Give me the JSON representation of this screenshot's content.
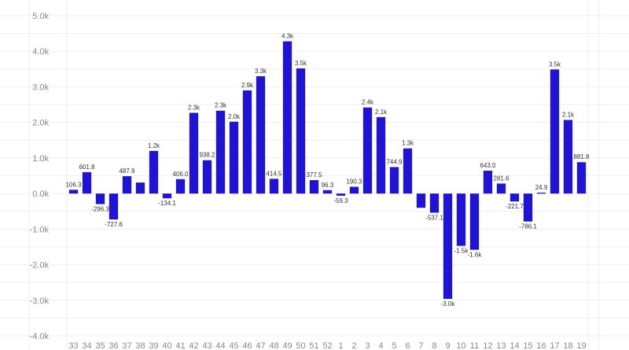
{
  "chart_data": {
    "type": "bar",
    "categories": [
      "33",
      "34",
      "35",
      "36",
      "37",
      "38",
      "39",
      "40",
      "41",
      "42",
      "43",
      "44",
      "45",
      "46",
      "47",
      "48",
      "49",
      "50",
      "51",
      "52",
      "1",
      "2",
      "3",
      "4",
      "5",
      "6",
      "7",
      "8",
      "9",
      "10",
      "11",
      "12",
      "13",
      "14",
      "15",
      "16",
      "17",
      "18",
      "19"
    ],
    "values": [
      106.3,
      601.8,
      -296.3,
      -727.6,
      487.9,
      310,
      1200,
      -134.1,
      406.0,
      2270,
      938.2,
      2330,
      2020,
      2900,
      3300,
      414.5,
      4280,
      3520,
      377.5,
      96.3,
      -59.3,
      190.3,
      2420,
      2150,
      744.9,
      1270,
      -400,
      -537.1,
      -2960,
      -1470,
      -1580,
      643.0,
      281.6,
      -221.7,
      -786.1,
      24.9,
      3490,
      2070,
      881.8
    ],
    "data_labels": [
      "106.3",
      "601.8",
      "-296.3",
      "-727.6",
      "487.9",
      "",
      "1.2k",
      "-134.1",
      "406.0",
      "2.3k",
      "938.2",
      "2.3k",
      "2.0k",
      "2.9k",
      "3.3k",
      "414.5",
      "4.3k",
      "3.5k",
      "377.5",
      "96.3",
      "-59.3",
      "190.3",
      "2.4k",
      "2.1k",
      "744.9",
      "1.3k",
      "",
      "-537.1",
      "-3.0k",
      "-1.5k",
      "-1.6k",
      "643.0",
      "281.6",
      "-221.7",
      "-786.1",
      "24.9",
      "3.5k",
      "2.1k",
      "881.8"
    ],
    "y_ticks": [
      "5.0k",
      "4.0k",
      "3.0k",
      "2.0k",
      "1.0k",
      "0.0k",
      "-1.0k",
      "-2.0k",
      "-3.0k",
      "-4.0k"
    ],
    "ylim": [
      -4000,
      5000
    ],
    "grid": true,
    "bar_color": "#1f14d6"
  }
}
